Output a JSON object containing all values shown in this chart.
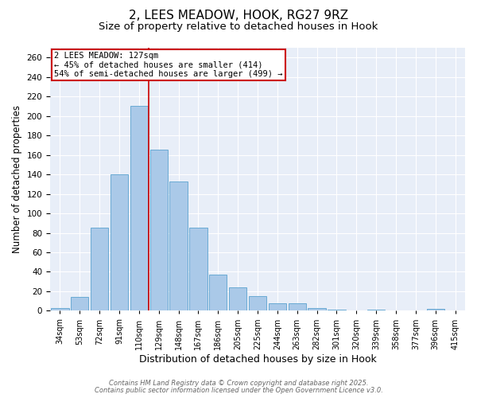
{
  "title1": "2, LEES MEADOW, HOOK, RG27 9RZ",
  "title2": "Size of property relative to detached houses in Hook",
  "xlabel": "Distribution of detached houses by size in Hook",
  "ylabel": "Number of detached properties",
  "categories": [
    "34sqm",
    "53sqm",
    "72sqm",
    "91sqm",
    "110sqm",
    "129sqm",
    "148sqm",
    "167sqm",
    "186sqm",
    "205sqm",
    "225sqm",
    "244sqm",
    "263sqm",
    "282sqm",
    "301sqm",
    "320sqm",
    "339sqm",
    "358sqm",
    "377sqm",
    "396sqm",
    "415sqm"
  ],
  "values": [
    3,
    14,
    85,
    140,
    210,
    165,
    133,
    85,
    37,
    24,
    15,
    8,
    8,
    3,
    1,
    0,
    1,
    0,
    0,
    2
  ],
  "bar_color": "#aac9e8",
  "bar_edge_color": "#6aaad4",
  "vline_x": 4.5,
  "vline_color": "#cc0000",
  "ylim": [
    0,
    270
  ],
  "yticks": [
    0,
    20,
    40,
    60,
    80,
    100,
    120,
    140,
    160,
    180,
    200,
    220,
    240,
    260
  ],
  "annotation_title": "2 LEES MEADOW: 127sqm",
  "annotation_line1": "← 45% of detached houses are smaller (414)",
  "annotation_line2": "54% of semi-detached houses are larger (499) →",
  "annotation_box_color": "#cc0000",
  "footnote1": "Contains HM Land Registry data © Crown copyright and database right 2025.",
  "footnote2": "Contains public sector information licensed under the Open Government Licence v3.0.",
  "bg_color": "#e8eef8",
  "title1_fontsize": 11,
  "title2_fontsize": 9.5,
  "xlabel_fontsize": 9,
  "ylabel_fontsize": 8.5,
  "annotation_fontsize": 7.5,
  "footnote_fontsize": 6.0
}
